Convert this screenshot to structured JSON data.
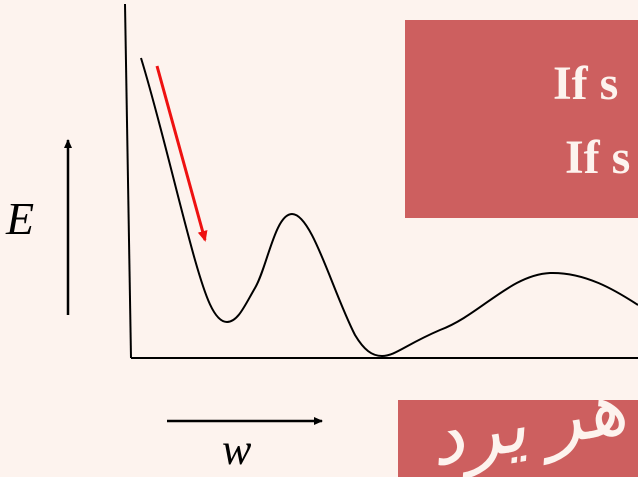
{
  "labels": {
    "energy": "E",
    "weight": "w"
  },
  "callout_top": {
    "line1": "If s",
    "line2": "If s"
  },
  "callout_bottom": {
    "text": "ﻫﺮ ﻳﺮﺩ"
  },
  "colors": {
    "background": "#fdf3ee",
    "callout": "#cd5f5f",
    "curve": "#000000",
    "descent_arrow": "#ee1111"
  }
}
